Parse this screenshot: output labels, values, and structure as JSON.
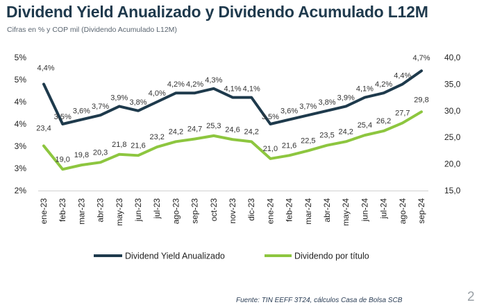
{
  "header": {
    "title": "Dividend Yield Anualizado y Dividendo Acumulado L12M",
    "subtitle": "Cifras en % y COP mil (Dividendo Acumulado L12M)"
  },
  "footer": {
    "source": "Fuente: TIN EEFF 3T24, cálculos Casa de Bolsa SCB",
    "page_number": "2"
  },
  "colors": {
    "yield_line": "#1e3a4c",
    "dividend_line": "#8dc63f"
  },
  "chart_data": {
    "type": "line",
    "categories": [
      "ene-23",
      "feb-23",
      "mar-23",
      "abr-23",
      "may-23",
      "jun-23",
      "jul-23",
      "ago-23",
      "sep-23",
      "oct-23",
      "nov-23",
      "dic-23",
      "ene-24",
      "feb-24",
      "mar-24",
      "abr-24",
      "may-24",
      "jun-24",
      "jul-24",
      "ago-24",
      "sep-24"
    ],
    "left_axis": {
      "ticks": [
        "2%",
        "3%",
        "3%",
        "4%",
        "4%",
        "5%",
        "5%"
      ],
      "ylim": [
        2.0,
        5.0
      ]
    },
    "right_axis": {
      "ticks": [
        "15,0",
        "20,0",
        "25,0",
        "30,0",
        "35,0",
        "40,0"
      ],
      "ylim": [
        15.0,
        40.0
      ]
    },
    "series": [
      {
        "name": "Dividend Yield Anualizado",
        "axis": "left",
        "values": [
          4.4,
          3.5,
          3.6,
          3.7,
          3.9,
          3.8,
          4.0,
          4.2,
          4.2,
          4.3,
          4.1,
          4.1,
          3.5,
          3.6,
          3.7,
          3.8,
          3.9,
          4.1,
          4.2,
          4.4,
          4.7
        ],
        "labels": [
          "4,4%",
          "3,5%",
          "3,6%",
          "3,7%",
          "3,9%",
          "3,8%",
          "4,0%",
          "4,2%",
          "4,2%",
          "4,3%",
          "4,1%",
          "4,1%",
          "3,5%",
          "3,6%",
          "3,7%",
          "3,8%",
          "3,9%",
          "4,1%",
          "4,2%",
          "4,4%",
          "4,7%"
        ]
      },
      {
        "name": "Dividendo por título",
        "axis": "right",
        "values": [
          23.4,
          19.0,
          19.8,
          20.3,
          21.8,
          21.6,
          23.2,
          24.2,
          24.7,
          25.3,
          24.6,
          24.2,
          21.0,
          21.6,
          22.5,
          23.5,
          24.2,
          25.4,
          26.2,
          27.7,
          29.8
        ],
        "labels": [
          "23,4",
          "19,0",
          "19,8",
          "20,3",
          "21,8",
          "21,6",
          "23,2",
          "24,2",
          "24,7",
          "25,3",
          "24,6",
          "24,2",
          "21,0",
          "21,6",
          "22,5",
          "23,5",
          "24,2",
          "25,4",
          "26,2",
          "27,7",
          "29,8"
        ]
      }
    ],
    "legend": "bottom",
    "grid": false
  }
}
